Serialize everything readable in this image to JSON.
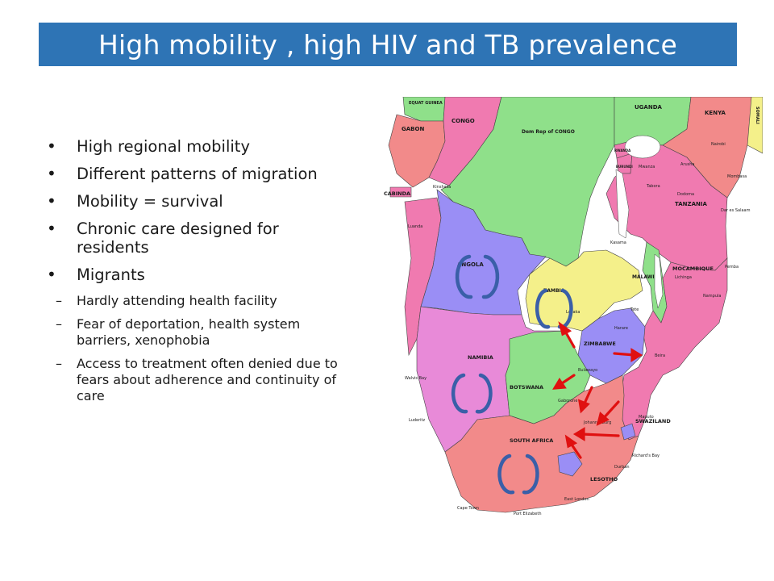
{
  "title": "High mobility , high HIV and TB prevalence",
  "bullets": [
    "High regional mobility",
    "Different patterns of migration",
    "Mobility = survival",
    "Chronic care  designed for residents",
    "Migrants"
  ],
  "sub_bullets": [
    "Hardly  attending health facility",
    "Fear of deportation,  health system barriers, xenophobia",
    "Access to treatment often denied due to fears about adherence and continuity of care"
  ],
  "map": {
    "countries": {
      "equatorial_guinea": "EQUAT GUINEA",
      "gabon": "GABON",
      "congo": "CONGO",
      "drc": "Dem Rep of CONGO",
      "uganda": "UGANDA",
      "kenya": "KENYA",
      "somalia": "SOMALI",
      "rwanda": "RWANDA",
      "burundi": "BURUNDI",
      "tanzania": "TANZANIA",
      "cabinda": "CABINDA",
      "angola": "ANGOLA",
      "zambia": "ZAMBIA",
      "malawi": "MALAWI",
      "mozambique": "MOCAMBIQUE",
      "zimbabwe": "ZIMBABWE",
      "namibia": "NAMIBIA",
      "botswana": "BOTSWANA",
      "south_africa": "SOUTH AFRICA",
      "swaziland": "SWAZILAND",
      "lesotho": "LESOTHO"
    },
    "cities": {
      "kinshasa": "Kinshasa",
      "luanda": "Luanda",
      "nairobi": "Nairobi",
      "mombasa": "Mombasa",
      "dar": "Dar es Salaam",
      "lusaka": "Lusaka",
      "harare": "Harare",
      "beira": "Beira",
      "maputo": "Maputo",
      "walvis": "Walvis Bay",
      "luderitz": "Luderitz",
      "cape_town": "Cape Town",
      "port_elizabeth": "Port Elizabeth",
      "east_london": "East London",
      "durban": "Durban",
      "johannesburg": "Johannesburg",
      "richards_bay": "Richard's Bay",
      "bulawayo": "Bulawayo",
      "kasama": "Kasama",
      "arusha": "Arusha",
      "mwanza": "Mwanza",
      "tabora": "Tabora",
      "dodoma": "Dodoma",
      "pemba": "Pemba",
      "nampula": "Nampula",
      "lichinga": "Lichinga",
      "gaborone": "Gaborone",
      "tete": "Tete"
    },
    "colors": {
      "pink": "#f07ab0",
      "green": "#8fe08a",
      "salmon": "#f28a8a",
      "purple": "#9a8ef5",
      "yellow": "#f4f08a",
      "magenta": "#e88ad8",
      "water": "#ffffff",
      "circle": "#3a5fa8",
      "arrow": "#e01010"
    }
  }
}
